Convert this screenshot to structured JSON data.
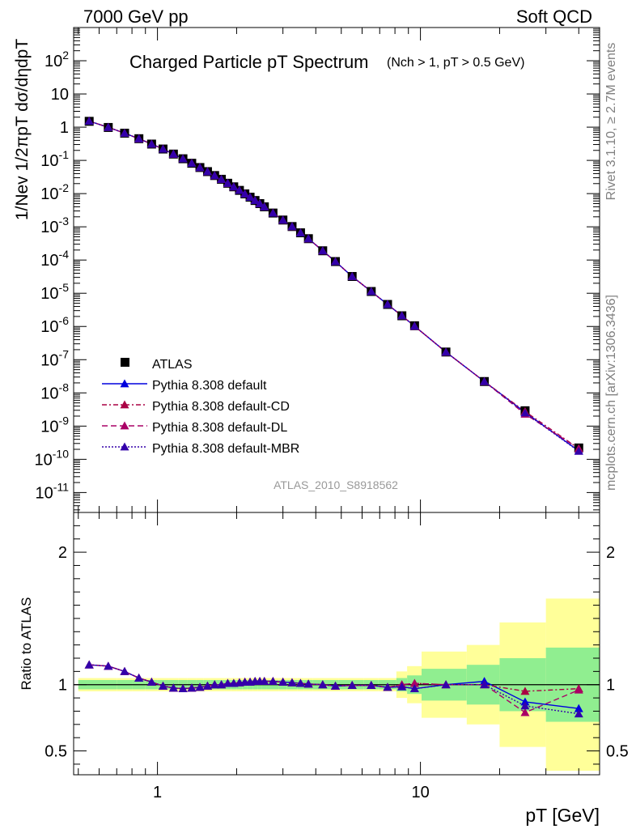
{
  "header": {
    "left": "7000 GeV pp",
    "right": "Soft QCD"
  },
  "side_labels": {
    "rivet": "Rivet 3.1.10, ≥ 2.7M events",
    "mcplots": "mcplots.cern.ch [arXiv:1306.3436]"
  },
  "colors": {
    "data": "#000000",
    "default": "#0000dd",
    "cd": "#aa0044",
    "dl": "#aa0066",
    "mbr": "#3300aa",
    "band_inner": "#90ee90",
    "band_outer": "#ffff99",
    "watermark": "#999999"
  },
  "chart_data": [
    {
      "type": "scatter",
      "title": "Charged Particle pT Spectrum",
      "title_sub": "(Nch > 1, pT > 0.5 GeV)",
      "ylabel": "1/Nev 1/2πpT dσ/dηdpT",
      "xlabel": "pT  [GeV]",
      "xscale": "log",
      "yscale": "log",
      "xlim": [
        0.48,
        48
      ],
      "ylim_exp": [
        -11.6,
        3.0
      ],
      "grid": false,
      "legend_position": "lower-left",
      "watermark": "ATLAS_2010_S8918562",
      "y_tick_labels": [
        "10^2",
        "10",
        "1",
        "10^-1",
        "10^-2",
        "10^-3",
        "10^-4",
        "10^-5",
        "10^-6",
        "10^-7",
        "10^-8",
        "10^-9",
        "10^-10",
        "10^-11"
      ],
      "legend": [
        "ATLAS",
        "Pythia 8.308 default",
        "Pythia 8.308 default-CD",
        "Pythia 8.308 default-DL",
        "Pythia 8.308 default-MBR"
      ],
      "series": [
        {
          "name": "ATLAS",
          "x": [
            0.55,
            0.65,
            0.75,
            0.85,
            0.95,
            1.05,
            1.15,
            1.25,
            1.35,
            1.45,
            1.55,
            1.65,
            1.75,
            1.85,
            1.95,
            2.05,
            2.15,
            2.25,
            2.35,
            2.45,
            2.55,
            2.75,
            3.0,
            3.25,
            3.5,
            3.75,
            4.25,
            4.75,
            5.5,
            6.5,
            7.5,
            8.5,
            9.5,
            12.5,
            17.5,
            25,
            40
          ],
          "y": [
            1.5,
            0.98,
            0.66,
            0.45,
            0.31,
            0.22,
            0.155,
            0.112,
            0.082,
            0.061,
            0.046,
            0.035,
            0.027,
            0.0205,
            0.016,
            0.0125,
            0.0098,
            0.0078,
            0.0062,
            0.005,
            0.004,
            0.0026,
            0.0016,
            0.00102,
            0.00066,
            0.00044,
            0.00019,
            9e-05,
            3.2e-05,
            1.13e-05,
            4.6e-06,
            2.1e-06,
            1.05e-06,
            1.7e-07,
            2.2e-08,
            2.9e-09,
            2.2e-10
          ]
        },
        {
          "name": "Pythia 8.308 default",
          "x": [
            0.55,
            0.65,
            0.75,
            0.85,
            0.95,
            1.05,
            1.15,
            1.25,
            1.35,
            1.45,
            1.55,
            1.65,
            1.75,
            1.85,
            1.95,
            2.05,
            2.15,
            2.25,
            2.35,
            2.45,
            2.55,
            2.75,
            3.0,
            3.25,
            3.5,
            3.75,
            4.25,
            4.75,
            5.5,
            6.5,
            7.5,
            8.5,
            9.5,
            12.5,
            17.5,
            25,
            40
          ],
          "y": [
            1.52,
            0.99,
            0.66,
            0.45,
            0.31,
            0.22,
            0.155,
            0.112,
            0.082,
            0.061,
            0.046,
            0.035,
            0.027,
            0.0205,
            0.016,
            0.0125,
            0.0098,
            0.0078,
            0.0062,
            0.005,
            0.004,
            0.0026,
            0.0016,
            0.00102,
            0.00066,
            0.00044,
            0.00019,
            9e-05,
            3.2e-05,
            1.13e-05,
            4.6e-06,
            2.1e-06,
            1.02e-06,
            1.7e-07,
            2.2e-08,
            2.6e-09,
            1.8e-10
          ]
        },
        {
          "name": "Pythia 8.308 default-CD",
          "x": [
            0.55,
            0.65,
            0.75,
            0.85,
            0.95,
            1.05,
            1.15,
            1.25,
            1.35,
            1.45,
            1.55,
            1.65,
            1.75,
            1.85,
            1.95,
            2.05,
            2.15,
            2.25,
            2.35,
            2.45,
            2.55,
            2.75,
            3.0,
            3.25,
            3.5,
            3.75,
            4.25,
            4.75,
            5.5,
            6.5,
            7.5,
            8.5,
            9.5,
            12.5,
            17.5,
            25,
            40
          ],
          "y": [
            1.52,
            0.99,
            0.66,
            0.45,
            0.31,
            0.22,
            0.155,
            0.112,
            0.082,
            0.061,
            0.046,
            0.035,
            0.027,
            0.0205,
            0.016,
            0.0125,
            0.0098,
            0.0078,
            0.0062,
            0.005,
            0.004,
            0.0026,
            0.0016,
            0.00102,
            0.00066,
            0.00044,
            0.00019,
            9e-05,
            3.2e-05,
            1.13e-05,
            4.6e-06,
            2.1e-06,
            1.02e-06,
            1.7e-07,
            2.2e-08,
            2.75e-09,
            2.1e-10
          ]
        },
        {
          "name": "Pythia 8.308 default-DL",
          "x": [
            0.55,
            0.65,
            0.75,
            0.85,
            0.95,
            1.05,
            1.15,
            1.25,
            1.35,
            1.45,
            1.55,
            1.65,
            1.75,
            1.85,
            1.95,
            2.05,
            2.15,
            2.25,
            2.35,
            2.45,
            2.55,
            2.75,
            3.0,
            3.25,
            3.5,
            3.75,
            4.25,
            4.75,
            5.5,
            6.5,
            7.5,
            8.5,
            9.5,
            12.5,
            17.5,
            25,
            40
          ],
          "y": [
            1.52,
            0.99,
            0.66,
            0.45,
            0.31,
            0.22,
            0.155,
            0.112,
            0.082,
            0.061,
            0.046,
            0.035,
            0.027,
            0.0205,
            0.016,
            0.0125,
            0.0098,
            0.0078,
            0.0062,
            0.005,
            0.004,
            0.0026,
            0.0016,
            0.00102,
            0.00066,
            0.00044,
            0.00019,
            9e-05,
            3.2e-05,
            1.13e-05,
            4.6e-06,
            2.1e-06,
            1.02e-06,
            1.7e-07,
            2.2e-08,
            2.3e-09,
            2.1e-10
          ]
        },
        {
          "name": "Pythia 8.308 default-MBR",
          "x": [
            0.55,
            0.65,
            0.75,
            0.85,
            0.95,
            1.05,
            1.15,
            1.25,
            1.35,
            1.45,
            1.55,
            1.65,
            1.75,
            1.85,
            1.95,
            2.05,
            2.15,
            2.25,
            2.35,
            2.45,
            2.55,
            2.75,
            3.0,
            3.25,
            3.5,
            3.75,
            4.25,
            4.75,
            5.5,
            6.5,
            7.5,
            8.5,
            9.5,
            12.5,
            17.5,
            25,
            40
          ],
          "y": [
            1.52,
            0.99,
            0.66,
            0.45,
            0.31,
            0.22,
            0.155,
            0.112,
            0.082,
            0.061,
            0.046,
            0.035,
            0.027,
            0.0205,
            0.016,
            0.0125,
            0.0098,
            0.0078,
            0.0062,
            0.005,
            0.004,
            0.0026,
            0.0016,
            0.00102,
            0.00066,
            0.00044,
            0.00019,
            9e-05,
            3.2e-05,
            1.13e-05,
            4.6e-06,
            2.1e-06,
            1.02e-06,
            1.7e-07,
            2.2e-08,
            2.5e-09,
            1.75e-10
          ]
        }
      ]
    },
    {
      "type": "line",
      "ylabel": "Ratio to ATLAS",
      "xlabel": "pT  [GeV]",
      "xscale": "log",
      "xlim": [
        0.48,
        48
      ],
      "ylim": [
        0.32,
        2.3
      ],
      "y_ticks": [
        0.5,
        1,
        2
      ],
      "x_ticks": [
        1,
        10
      ],
      "legend_position": "none",
      "bands": {
        "edges": [
          0.5,
          0.6,
          0.7,
          0.8,
          0.9,
          1.0,
          1.1,
          1.2,
          1.3,
          1.4,
          1.5,
          1.6,
          1.7,
          1.8,
          1.9,
          2.0,
          2.1,
          2.2,
          2.3,
          2.4,
          2.5,
          2.6,
          2.9,
          3.1,
          3.4,
          3.6,
          3.9,
          4.6,
          4.9,
          6.1,
          6.9,
          8.1,
          8.9,
          10.1,
          15,
          20,
          30,
          50
        ],
        "inner_half_width": [
          0.035,
          0.035,
          0.035,
          0.035,
          0.035,
          0.035,
          0.035,
          0.035,
          0.035,
          0.035,
          0.035,
          0.035,
          0.035,
          0.035,
          0.035,
          0.035,
          0.035,
          0.035,
          0.035,
          0.035,
          0.035,
          0.035,
          0.035,
          0.035,
          0.035,
          0.035,
          0.035,
          0.035,
          0.035,
          0.035,
          0.035,
          0.05,
          0.07,
          0.12,
          0.15,
          0.2,
          0.28
        ],
        "outer_half_width": [
          0.05,
          0.05,
          0.05,
          0.05,
          0.05,
          0.05,
          0.05,
          0.05,
          0.05,
          0.05,
          0.05,
          0.05,
          0.05,
          0.05,
          0.05,
          0.05,
          0.05,
          0.05,
          0.05,
          0.05,
          0.05,
          0.05,
          0.05,
          0.05,
          0.05,
          0.05,
          0.05,
          0.05,
          0.05,
          0.05,
          0.05,
          0.1,
          0.14,
          0.25,
          0.3,
          0.47,
          0.65
        ]
      },
      "series": [
        {
          "name": "Pythia 8.308 default",
          "x": [
            0.55,
            0.65,
            0.75,
            0.85,
            0.95,
            1.05,
            1.15,
            1.25,
            1.35,
            1.45,
            1.55,
            1.65,
            1.75,
            1.85,
            1.95,
            2.05,
            2.15,
            2.25,
            2.35,
            2.45,
            2.55,
            2.75,
            3.0,
            3.25,
            3.5,
            3.75,
            4.25,
            4.75,
            5.5,
            6.5,
            7.5,
            8.5,
            9.5,
            12.5,
            17.5,
            25,
            40
          ],
          "y": [
            1.15,
            1.14,
            1.1,
            1.05,
            1.02,
            0.99,
            0.975,
            0.97,
            0.975,
            0.98,
            0.99,
            1.0,
            1.0,
            1.01,
            1.01,
            1.015,
            1.02,
            1.02,
            1.025,
            1.025,
            1.025,
            1.025,
            1.02,
            1.015,
            1.01,
            1.005,
            1.0,
            0.99,
            0.995,
            0.995,
            0.98,
            0.985,
            0.97,
            1.0,
            1.025,
            0.87,
            0.82
          ]
        },
        {
          "name": "Pythia 8.308 default-CD",
          "x": [
            0.55,
            0.65,
            0.75,
            0.85,
            0.95,
            1.05,
            1.15,
            1.25,
            1.35,
            1.45,
            1.55,
            1.65,
            1.75,
            1.85,
            1.95,
            2.05,
            2.15,
            2.25,
            2.35,
            2.45,
            2.55,
            2.75,
            3.0,
            3.25,
            3.5,
            3.75,
            4.25,
            4.75,
            5.5,
            6.5,
            7.5,
            8.5,
            9.5,
            12.5,
            17.5,
            25,
            40
          ],
          "y": [
            1.15,
            1.14,
            1.1,
            1.05,
            1.02,
            0.99,
            0.975,
            0.97,
            0.975,
            0.98,
            0.99,
            1.0,
            1.0,
            1.01,
            1.01,
            1.015,
            1.02,
            1.02,
            1.025,
            1.025,
            1.025,
            1.025,
            1.02,
            1.015,
            1.01,
            1.005,
            1.0,
            0.99,
            0.995,
            0.995,
            0.98,
            1.0,
            1.01,
            1.0,
            1.0,
            0.95,
            0.97
          ]
        },
        {
          "name": "Pythia 8.308 default-DL",
          "x": [
            0.55,
            0.65,
            0.75,
            0.85,
            0.95,
            1.05,
            1.15,
            1.25,
            1.35,
            1.45,
            1.55,
            1.65,
            1.75,
            1.85,
            1.95,
            2.05,
            2.15,
            2.25,
            2.35,
            2.45,
            2.55,
            2.75,
            3.0,
            3.25,
            3.5,
            3.75,
            4.25,
            4.75,
            5.5,
            6.5,
            7.5,
            8.5,
            9.5,
            12.5,
            17.5,
            25,
            40
          ],
          "y": [
            1.15,
            1.14,
            1.1,
            1.05,
            1.02,
            0.99,
            0.975,
            0.97,
            0.975,
            0.98,
            0.99,
            1.0,
            1.0,
            1.01,
            1.01,
            1.015,
            1.02,
            1.02,
            1.025,
            1.025,
            1.025,
            1.025,
            1.02,
            1.015,
            1.01,
            1.005,
            1.0,
            0.99,
            0.995,
            0.995,
            0.98,
            1.0,
            1.01,
            1.0,
            1.0,
            0.79,
            0.96
          ]
        },
        {
          "name": "Pythia 8.308 default-MBR",
          "x": [
            0.55,
            0.65,
            0.75,
            0.85,
            0.95,
            1.05,
            1.15,
            1.25,
            1.35,
            1.45,
            1.55,
            1.65,
            1.75,
            1.85,
            1.95,
            2.05,
            2.15,
            2.25,
            2.35,
            2.45,
            2.55,
            2.75,
            3.0,
            3.25,
            3.5,
            3.75,
            4.25,
            4.75,
            5.5,
            6.5,
            7.5,
            8.5,
            9.5,
            12.5,
            17.5,
            25,
            40
          ],
          "y": [
            1.15,
            1.14,
            1.1,
            1.05,
            1.02,
            0.99,
            0.975,
            0.97,
            0.975,
            0.98,
            0.99,
            1.0,
            1.0,
            1.01,
            1.01,
            1.015,
            1.02,
            1.02,
            1.025,
            1.025,
            1.025,
            1.025,
            1.02,
            1.015,
            1.01,
            1.005,
            1.0,
            0.99,
            0.995,
            0.995,
            0.98,
            0.985,
            0.97,
            1.0,
            1.0,
            0.84,
            0.78
          ]
        }
      ]
    }
  ]
}
